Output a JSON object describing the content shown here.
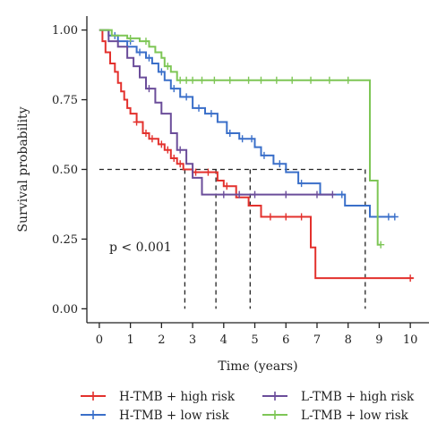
{
  "chart_data": {
    "type": "line",
    "title": "",
    "xlabel": "Time (years)",
    "ylabel": "Survival probability",
    "xlim": [
      -0.4,
      10.6
    ],
    "ylim": [
      -0.05,
      1.05
    ],
    "x_ticks": [
      0,
      1,
      2,
      3,
      4,
      5,
      6,
      7,
      8,
      9,
      10
    ],
    "y_ticks": [
      0.0,
      0.25,
      0.5,
      0.75,
      1.0
    ],
    "y_tick_labels": [
      "0.00",
      "0.25",
      "0.50",
      "0.75",
      "1.00"
    ],
    "annotation": "p < 0.001",
    "legend_position": "bottom",
    "median_reference": {
      "y": 0.5,
      "x_end": 8.55,
      "medians": [
        2.75,
        3.75,
        4.85,
        8.55
      ]
    },
    "series": [
      {
        "name": "H-TMB + high risk",
        "color": "#e3312d",
        "steps": [
          [
            0,
            1.0
          ],
          [
            0.1,
            0.96
          ],
          [
            0.2,
            0.92
          ],
          [
            0.35,
            0.88
          ],
          [
            0.5,
            0.85
          ],
          [
            0.6,
            0.81
          ],
          [
            0.7,
            0.78
          ],
          [
            0.8,
            0.75
          ],
          [
            0.9,
            0.72
          ],
          [
            1.0,
            0.7
          ],
          [
            1.2,
            0.67
          ],
          [
            1.4,
            0.63
          ],
          [
            1.6,
            0.61
          ],
          [
            1.9,
            0.59
          ],
          [
            2.1,
            0.57
          ],
          [
            2.3,
            0.54
          ],
          [
            2.5,
            0.52
          ],
          [
            2.7,
            0.5
          ],
          [
            3.0,
            0.49
          ],
          [
            3.3,
            0.49
          ],
          [
            3.8,
            0.46
          ],
          [
            4.0,
            0.44
          ],
          [
            4.4,
            0.4
          ],
          [
            4.8,
            0.37
          ],
          [
            5.2,
            0.33
          ],
          [
            6.6,
            0.33
          ],
          [
            6.8,
            0.22
          ],
          [
            6.95,
            0.11
          ],
          [
            10.1,
            0.11
          ]
        ],
        "censor": [
          [
            1.2,
            0.67
          ],
          [
            1.5,
            0.63
          ],
          [
            1.7,
            0.61
          ],
          [
            2.0,
            0.59
          ],
          [
            2.2,
            0.57
          ],
          [
            2.4,
            0.54
          ],
          [
            2.6,
            0.52
          ],
          [
            3.1,
            0.49
          ],
          [
            3.5,
            0.49
          ],
          [
            4.1,
            0.44
          ],
          [
            5.5,
            0.33
          ],
          [
            6.0,
            0.33
          ],
          [
            6.5,
            0.33
          ],
          [
            10.0,
            0.11
          ]
        ]
      },
      {
        "name": "H-TMB + low risk",
        "color": "#3a6fc9",
        "steps": [
          [
            0,
            1.0
          ],
          [
            0.3,
            0.98
          ],
          [
            0.6,
            0.96
          ],
          [
            0.9,
            0.94
          ],
          [
            1.2,
            0.92
          ],
          [
            1.5,
            0.9
          ],
          [
            1.7,
            0.88
          ],
          [
            1.9,
            0.85
          ],
          [
            2.1,
            0.82
          ],
          [
            2.3,
            0.79
          ],
          [
            2.6,
            0.76
          ],
          [
            3.0,
            0.72
          ],
          [
            3.4,
            0.7
          ],
          [
            3.8,
            0.67
          ],
          [
            4.1,
            0.63
          ],
          [
            4.5,
            0.61
          ],
          [
            5.0,
            0.58
          ],
          [
            5.2,
            0.55
          ],
          [
            5.6,
            0.52
          ],
          [
            6.0,
            0.49
          ],
          [
            6.4,
            0.45
          ],
          [
            7.1,
            0.41
          ],
          [
            7.9,
            0.37
          ],
          [
            8.7,
            0.33
          ],
          [
            9.5,
            0.33
          ]
        ],
        "censor": [
          [
            0.5,
            0.98
          ],
          [
            1.0,
            0.96
          ],
          [
            1.3,
            0.92
          ],
          [
            1.6,
            0.9
          ],
          [
            2.0,
            0.85
          ],
          [
            2.4,
            0.79
          ],
          [
            2.8,
            0.76
          ],
          [
            3.2,
            0.72
          ],
          [
            3.6,
            0.7
          ],
          [
            4.2,
            0.63
          ],
          [
            4.6,
            0.61
          ],
          [
            4.9,
            0.61
          ],
          [
            5.3,
            0.55
          ],
          [
            5.8,
            0.52
          ],
          [
            6.5,
            0.45
          ],
          [
            7.8,
            0.41
          ],
          [
            9.3,
            0.33
          ],
          [
            9.5,
            0.33
          ]
        ]
      },
      {
        "name": "L-TMB + high risk",
        "color": "#6b4d9a",
        "steps": [
          [
            0,
            1.0
          ],
          [
            0.3,
            0.96
          ],
          [
            0.6,
            0.94
          ],
          [
            0.9,
            0.9
          ],
          [
            1.1,
            0.87
          ],
          [
            1.3,
            0.83
          ],
          [
            1.5,
            0.79
          ],
          [
            1.8,
            0.74
          ],
          [
            2.0,
            0.7
          ],
          [
            2.3,
            0.63
          ],
          [
            2.5,
            0.57
          ],
          [
            2.8,
            0.52
          ],
          [
            3.0,
            0.47
          ],
          [
            3.3,
            0.41
          ],
          [
            7.5,
            0.41
          ]
        ],
        "censor": [
          [
            1.6,
            0.79
          ],
          [
            2.6,
            0.57
          ],
          [
            4.0,
            0.41
          ],
          [
            4.5,
            0.41
          ],
          [
            5.0,
            0.41
          ],
          [
            6.0,
            0.41
          ],
          [
            7.0,
            0.41
          ],
          [
            7.5,
            0.41
          ]
        ]
      },
      {
        "name": "L-TMB + low risk",
        "color": "#7ec656",
        "steps": [
          [
            0,
            1.0
          ],
          [
            0.4,
            0.98
          ],
          [
            0.9,
            0.97
          ],
          [
            1.3,
            0.96
          ],
          [
            1.6,
            0.94
          ],
          [
            1.8,
            0.92
          ],
          [
            2.0,
            0.9
          ],
          [
            2.1,
            0.87
          ],
          [
            2.3,
            0.85
          ],
          [
            2.5,
            0.82
          ],
          [
            8.6,
            0.82
          ],
          [
            8.7,
            0.46
          ],
          [
            8.9,
            0.46
          ],
          [
            8.95,
            0.23
          ],
          [
            9.05,
            0.23
          ]
        ],
        "censor": [
          [
            1.0,
            0.97
          ],
          [
            1.5,
            0.96
          ],
          [
            2.2,
            0.87
          ],
          [
            2.6,
            0.82
          ],
          [
            2.8,
            0.82
          ],
          [
            3.0,
            0.82
          ],
          [
            3.3,
            0.82
          ],
          [
            3.7,
            0.82
          ],
          [
            4.2,
            0.82
          ],
          [
            4.8,
            0.82
          ],
          [
            5.2,
            0.82
          ],
          [
            5.7,
            0.82
          ],
          [
            6.2,
            0.82
          ],
          [
            6.8,
            0.82
          ],
          [
            7.4,
            0.82
          ],
          [
            8.0,
            0.82
          ],
          [
            9.05,
            0.23
          ]
        ]
      }
    ]
  }
}
